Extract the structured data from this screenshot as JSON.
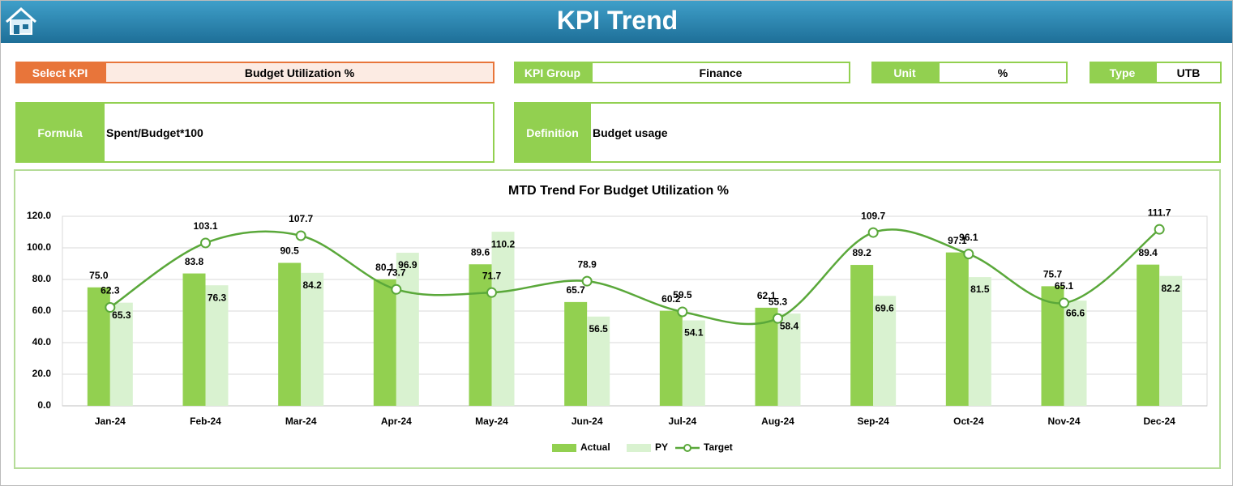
{
  "header": {
    "title": "KPI Trend"
  },
  "fields": [
    {
      "label": "Select KPI",
      "value": "Budget Utilization %"
    },
    {
      "label": "KPI Group",
      "value": "Finance"
    },
    {
      "label": "Unit",
      "value": "%"
    },
    {
      "label": "Type",
      "value": "UTB"
    },
    {
      "label": "Formula",
      "value": "Spent/Budget*100"
    },
    {
      "label": "Definition",
      "value": "Budget usage"
    }
  ],
  "chart_data": {
    "type": "bar",
    "title": "MTD Trend For Budget Utilization %",
    "categories": [
      "Jan-24",
      "Feb-24",
      "Mar-24",
      "Apr-24",
      "May-24",
      "Jun-24",
      "Jul-24",
      "Aug-24",
      "Sep-24",
      "Oct-24",
      "Nov-24",
      "Dec-24"
    ],
    "series": [
      {
        "name": "Actual",
        "type": "bar",
        "color": "#92d050",
        "values": [
          75,
          83.8,
          90.5,
          80.1,
          89.6,
          65.7,
          60.2,
          62.1,
          89.2,
          97.1,
          75.7,
          89.4
        ],
        "value_labels": [
          "75.0",
          "83.8",
          "90.5",
          "80.1",
          "89.6",
          "65.7",
          "60.2",
          "62.1",
          "89.2",
          "97.1",
          "75.7",
          "89.4"
        ]
      },
      {
        "name": "PY",
        "type": "bar",
        "color": "#d9f2d0",
        "values": [
          65.3,
          76.3,
          84.2,
          96.9,
          110.2,
          56.5,
          54.1,
          58.4,
          69.6,
          81.5,
          66.6,
          82.2
        ],
        "value_labels": [
          "65.3",
          "76.3",
          "84.2",
          "96.9",
          "110.2",
          "56.5",
          "54.1",
          "58.4",
          "69.6",
          "81.5",
          "66.6",
          "82.2"
        ]
      },
      {
        "name": "Target",
        "type": "line",
        "smooth": true,
        "color": "#5aa83a",
        "values": [
          62.3,
          103.1,
          107.7,
          73.7,
          71.7,
          78.9,
          59.5,
          55.3,
          109.7,
          96.1,
          65.1,
          111.7
        ],
        "value_labels": [
          "62.3",
          "103.1",
          "107.7",
          "73.7",
          "71.7",
          "78.9",
          "59.5",
          "55.3",
          "109.7",
          "96.1",
          "65.1",
          "111.7"
        ]
      }
    ],
    "ylim": [
      0,
      120
    ],
    "yticks": [
      {
        "value": 0,
        "label": "0.0"
      },
      {
        "value": 20,
        "label": "20.0"
      },
      {
        "value": 40,
        "label": "40.0"
      },
      {
        "value": 60,
        "label": "60.0"
      },
      {
        "value": 80,
        "label": "80.0"
      },
      {
        "value": 100,
        "label": "100.0"
      },
      {
        "value": 120,
        "label": "120.0"
      }
    ],
    "grid": true,
    "legend": "bottom"
  }
}
